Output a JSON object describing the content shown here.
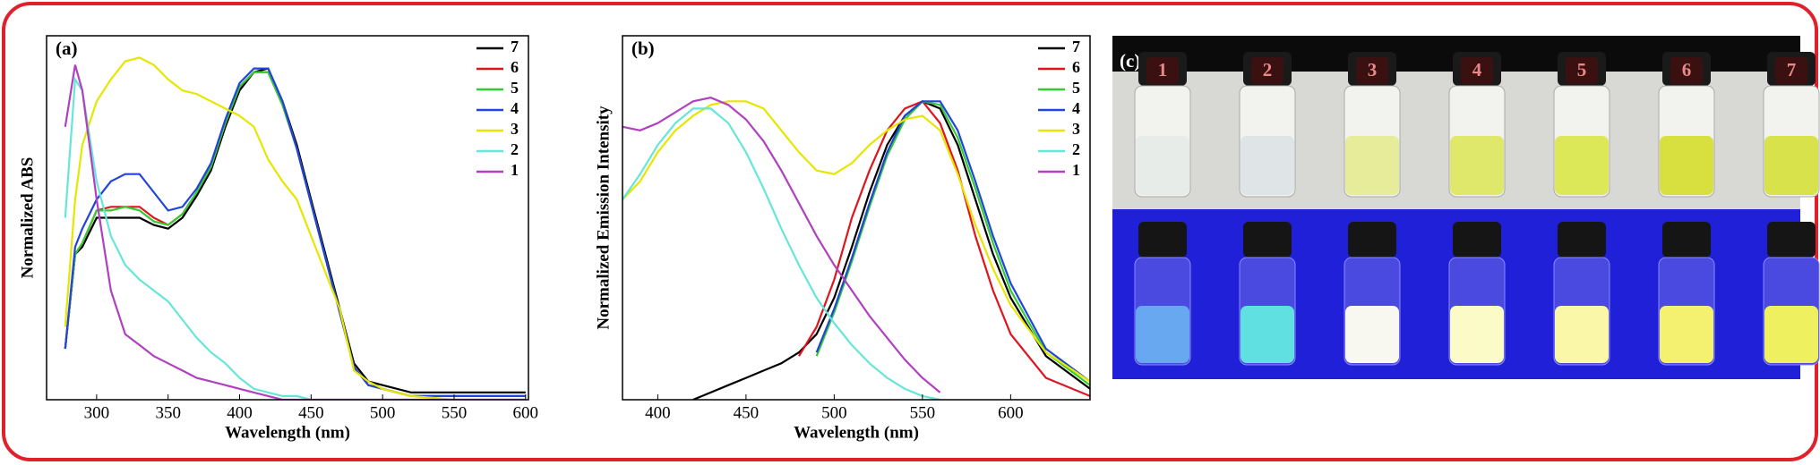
{
  "chart_data": [
    {
      "type": "line",
      "title": "(a)",
      "x_label": "Wavelength (nm)",
      "y_label": "Normalized ABS",
      "x": [
        278,
        285,
        290,
        300,
        310,
        320,
        330,
        340,
        350,
        360,
        370,
        380,
        390,
        400,
        410,
        420,
        430,
        440,
        450,
        460,
        470,
        480,
        490,
        500,
        520,
        550,
        600
      ],
      "xlim": [
        265,
        602
      ],
      "xticks": [
        300,
        350,
        400,
        450,
        500,
        550,
        600
      ],
      "ylim": [
        0,
        1
      ],
      "series": [
        {
          "name": "7",
          "color": "#000000",
          "values": [
            0.14,
            0.4,
            0.42,
            0.5,
            0.5,
            0.5,
            0.5,
            0.48,
            0.47,
            0.5,
            0.56,
            0.63,
            0.75,
            0.85,
            0.9,
            0.91,
            0.82,
            0.7,
            0.55,
            0.4,
            0.25,
            0.1,
            0.05,
            0.04,
            0.02,
            0.02,
            0.02
          ]
        },
        {
          "name": "6",
          "color": "#e0141e",
          "values": [
            0.14,
            0.4,
            0.43,
            0.52,
            0.53,
            0.53,
            0.53,
            0.5,
            0.48,
            0.51,
            0.57,
            0.64,
            0.76,
            0.86,
            0.9,
            0.9,
            0.81,
            0.69,
            0.54,
            0.39,
            0.24,
            0.09,
            0.04,
            0.03,
            0.01,
            0.01,
            0.01
          ]
        },
        {
          "name": "5",
          "color": "#33cc33",
          "values": [
            0.14,
            0.4,
            0.43,
            0.52,
            0.52,
            0.53,
            0.52,
            0.49,
            0.48,
            0.51,
            0.57,
            0.64,
            0.76,
            0.86,
            0.9,
            0.9,
            0.81,
            0.69,
            0.54,
            0.39,
            0.24,
            0.09,
            0.04,
            0.03,
            0.01,
            0.01,
            0.01
          ]
        },
        {
          "name": "4",
          "color": "#2244dd",
          "values": [
            0.14,
            0.42,
            0.47,
            0.55,
            0.6,
            0.62,
            0.62,
            0.57,
            0.52,
            0.53,
            0.58,
            0.65,
            0.77,
            0.87,
            0.91,
            0.91,
            0.82,
            0.69,
            0.54,
            0.39,
            0.24,
            0.09,
            0.04,
            0.03,
            0.01,
            0.01,
            0.01
          ]
        },
        {
          "name": "3",
          "color": "#e6e600",
          "values": [
            0.2,
            0.55,
            0.7,
            0.82,
            0.88,
            0.93,
            0.94,
            0.92,
            0.88,
            0.85,
            0.84,
            0.82,
            0.8,
            0.78,
            0.75,
            0.66,
            0.6,
            0.55,
            0.45,
            0.35,
            0.25,
            0.08,
            0.05,
            0.03,
            0.01,
            0,
            0
          ]
        },
        {
          "name": "2",
          "color": "#66e6d8",
          "values": [
            0.5,
            0.88,
            0.85,
            0.6,
            0.45,
            0.37,
            0.33,
            0.3,
            0.27,
            0.22,
            0.17,
            0.13,
            0.1,
            0.06,
            0.03,
            0.02,
            0.01,
            0.01,
            0,
            0,
            0,
            0,
            0,
            0,
            0,
            0,
            0
          ]
        },
        {
          "name": "1",
          "color": "#b040c0",
          "values": [
            0.75,
            0.92,
            0.85,
            0.55,
            0.3,
            0.18,
            0.15,
            0.12,
            0.1,
            0.08,
            0.06,
            0.05,
            0.04,
            0.03,
            0.02,
            0.01,
            0,
            0,
            0,
            0,
            0,
            0,
            0,
            0,
            0,
            0,
            0
          ]
        }
      ]
    },
    {
      "type": "line",
      "title": "(b)",
      "x_label": "Wavelength (nm)",
      "y_label": "Normalized Emission Intensity",
      "x": [
        380,
        390,
        400,
        410,
        420,
        430,
        440,
        450,
        460,
        470,
        480,
        490,
        500,
        510,
        520,
        530,
        540,
        550,
        560,
        570,
        580,
        590,
        600,
        620,
        645
      ],
      "xlim": [
        380,
        645
      ],
      "xticks": [
        400,
        450,
        500,
        550,
        600
      ],
      "ylim": [
        0,
        1
      ],
      "series": [
        {
          "name": "7",
          "color": "#000000",
          "values": [
            null,
            null,
            null,
            null,
            0,
            0.02,
            0.04,
            0.06,
            0.08,
            0.1,
            0.13,
            0.18,
            0.28,
            0.42,
            0.57,
            0.7,
            0.78,
            0.82,
            0.8,
            0.7,
            0.55,
            0.4,
            0.28,
            0.12,
            0.03
          ]
        },
        {
          "name": "6",
          "color": "#e0141e",
          "values": [
            null,
            null,
            null,
            null,
            null,
            null,
            null,
            null,
            null,
            null,
            0.12,
            0.2,
            0.33,
            0.5,
            0.63,
            0.74,
            0.8,
            0.82,
            0.76,
            0.63,
            0.45,
            0.3,
            0.18,
            0.06,
            0.01
          ]
        },
        {
          "name": "5",
          "color": "#33cc33",
          "values": [
            null,
            null,
            null,
            null,
            null,
            null,
            null,
            null,
            null,
            null,
            null,
            0.12,
            0.24,
            0.38,
            0.53,
            0.67,
            0.77,
            0.82,
            0.81,
            0.72,
            0.58,
            0.43,
            0.3,
            0.13,
            0.04
          ]
        },
        {
          "name": "4",
          "color": "#2244dd",
          "values": [
            null,
            null,
            null,
            null,
            null,
            null,
            null,
            null,
            null,
            null,
            null,
            0.13,
            0.25,
            0.39,
            0.54,
            0.68,
            0.78,
            0.82,
            0.82,
            0.74,
            0.6,
            0.45,
            0.32,
            0.14,
            0.05
          ]
        },
        {
          "name": "3",
          "color": "#e6e600",
          "values": [
            0.55,
            0.6,
            0.68,
            0.74,
            0.78,
            0.81,
            0.82,
            0.82,
            0.8,
            0.74,
            0.68,
            0.63,
            0.62,
            0.65,
            0.7,
            0.74,
            0.77,
            0.78,
            0.74,
            0.62,
            0.48,
            0.36,
            0.26,
            0.13,
            0.05
          ]
        },
        {
          "name": "2",
          "color": "#66e6d8",
          "values": [
            0.55,
            0.62,
            0.7,
            0.76,
            0.8,
            0.8,
            0.76,
            0.68,
            0.58,
            0.47,
            0.37,
            0.28,
            0.21,
            0.15,
            0.1,
            0.06,
            0.03,
            0.01,
            0,
            null,
            null,
            null,
            null,
            null,
            null
          ]
        },
        {
          "name": "1",
          "color": "#b040c0",
          "values": [
            0.75,
            0.74,
            0.76,
            0.79,
            0.82,
            0.83,
            0.81,
            0.77,
            0.71,
            0.63,
            0.54,
            0.45,
            0.37,
            0.3,
            0.23,
            0.17,
            0.11,
            0.06,
            0.02,
            null,
            null,
            null,
            null,
            null,
            null
          ]
        }
      ]
    }
  ],
  "photo": {
    "label": "(c)",
    "vials": [
      "1",
      "2",
      "3",
      "4",
      "5",
      "6",
      "7"
    ]
  }
}
